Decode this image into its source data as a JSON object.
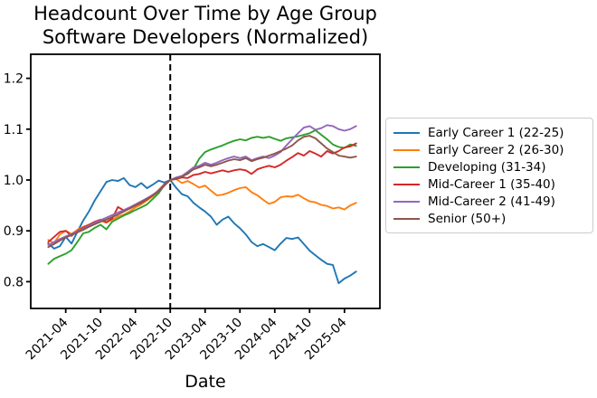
{
  "title_line1": "Headcount Over Time by Age Group",
  "title_line2": "Software Developers (Normalized)",
  "chart_data": {
    "type": "line",
    "title": "Headcount Over Time by Age Group",
    "subtitle": "Software Developers (Normalized)",
    "xlabel": "Date",
    "ylabel": "",
    "grid": false,
    "legend_position": "right",
    "ylim": [
      0.75,
      1.25
    ],
    "y_ticks": [
      "0.8",
      "0.9",
      "1.0",
      "1.1",
      "1.2"
    ],
    "y_tick_values": [
      0.8,
      0.9,
      1.0,
      1.1,
      1.2
    ],
    "x_tick_labels": [
      "2021-04",
      "2021-10",
      "2022-04",
      "2022-10",
      "2023-04",
      "2023-10",
      "2024-04",
      "2024-10",
      "2025-04"
    ],
    "annotation": {
      "type": "vline",
      "x": "2022-10",
      "style": "dashed",
      "color": "#000000"
    },
    "x": [
      "2021-01",
      "2021-02",
      "2021-03",
      "2021-04",
      "2021-05",
      "2021-06",
      "2021-07",
      "2021-08",
      "2021-09",
      "2021-10",
      "2021-11",
      "2021-12",
      "2022-01",
      "2022-02",
      "2022-03",
      "2022-04",
      "2022-05",
      "2022-06",
      "2022-07",
      "2022-08",
      "2022-09",
      "2022-10",
      "2022-11",
      "2022-12",
      "2023-01",
      "2023-02",
      "2023-03",
      "2023-04",
      "2023-05",
      "2023-06",
      "2023-07",
      "2023-08",
      "2023-09",
      "2023-10",
      "2023-11",
      "2023-12",
      "2024-01",
      "2024-02",
      "2024-03",
      "2024-04",
      "2024-05",
      "2024-06",
      "2024-07",
      "2024-08",
      "2024-09",
      "2024-10",
      "2024-11",
      "2024-12",
      "2025-01",
      "2025-02",
      "2025-03",
      "2025-04",
      "2025-05",
      "2025-06"
    ],
    "series": [
      {
        "name": "Early Career 1 (22-25)",
        "color": "#1f77b4",
        "values": [
          0.875,
          0.865,
          0.87,
          0.888,
          0.875,
          0.898,
          0.92,
          0.938,
          0.96,
          0.978,
          0.996,
          1.0,
          0.998,
          1.004,
          0.99,
          0.986,
          0.994,
          0.984,
          0.991,
          0.999,
          0.995,
          1.0,
          0.985,
          0.972,
          0.968,
          0.955,
          0.946,
          0.938,
          0.928,
          0.912,
          0.922,
          0.928,
          0.915,
          0.905,
          0.893,
          0.878,
          0.87,
          0.874,
          0.868,
          0.862,
          0.875,
          0.886,
          0.884,
          0.887,
          0.874,
          0.861,
          0.852,
          0.843,
          0.835,
          0.833,
          0.797,
          0.806,
          0.812,
          0.82
        ]
      },
      {
        "name": "Early Career 2 (26-30)",
        "color": "#ff7f0e",
        "values": [
          0.882,
          0.876,
          0.893,
          0.9,
          0.894,
          0.902,
          0.908,
          0.912,
          0.916,
          0.92,
          0.916,
          0.922,
          0.928,
          0.932,
          0.938,
          0.946,
          0.952,
          0.96,
          0.968,
          0.978,
          0.99,
          1.0,
          1.002,
          0.994,
          0.998,
          0.992,
          0.985,
          0.989,
          0.979,
          0.97,
          0.971,
          0.975,
          0.98,
          0.984,
          0.986,
          0.976,
          0.97,
          0.961,
          0.953,
          0.957,
          0.966,
          0.968,
          0.967,
          0.971,
          0.964,
          0.958,
          0.956,
          0.951,
          0.949,
          0.944,
          0.946,
          0.942,
          0.95,
          0.955
        ]
      },
      {
        "name": "Developing (31-34)",
        "color": "#2ca02c",
        "values": [
          0.835,
          0.845,
          0.85,
          0.855,
          0.862,
          0.878,
          0.895,
          0.898,
          0.906,
          0.912,
          0.903,
          0.918,
          0.924,
          0.93,
          0.935,
          0.941,
          0.946,
          0.952,
          0.963,
          0.974,
          0.99,
          1.0,
          1.004,
          1.008,
          1.012,
          1.022,
          1.042,
          1.055,
          1.06,
          1.064,
          1.068,
          1.073,
          1.077,
          1.08,
          1.078,
          1.083,
          1.085,
          1.083,
          1.085,
          1.081,
          1.077,
          1.082,
          1.084,
          1.086,
          1.089,
          1.092,
          1.098,
          1.089,
          1.08,
          1.07,
          1.065,
          1.063,
          1.07,
          1.067
        ]
      },
      {
        "name": "Mid-Career 1 (35-40)",
        "color": "#d62728",
        "values": [
          0.878,
          0.888,
          0.898,
          0.9,
          0.89,
          0.9,
          0.906,
          0.912,
          0.918,
          0.922,
          0.917,
          0.924,
          0.947,
          0.94,
          0.944,
          0.95,
          0.955,
          0.962,
          0.97,
          0.98,
          0.992,
          1.0,
          1.002,
          1.005,
          1.004,
          1.01,
          1.012,
          1.016,
          1.013,
          1.016,
          1.019,
          1.016,
          1.019,
          1.021,
          1.019,
          1.012,
          1.021,
          1.025,
          1.028,
          1.025,
          1.03,
          1.038,
          1.045,
          1.053,
          1.048,
          1.057,
          1.052,
          1.046,
          1.057,
          1.052,
          1.057,
          1.064,
          1.066,
          1.072
        ]
      },
      {
        "name": "Mid-Career 2 (41-49)",
        "color": "#9467bd",
        "values": [
          0.872,
          0.878,
          0.884,
          0.889,
          0.894,
          0.899,
          0.904,
          0.91,
          0.916,
          0.921,
          0.926,
          0.931,
          0.936,
          0.941,
          0.946,
          0.952,
          0.958,
          0.964,
          0.971,
          0.979,
          0.99,
          1.0,
          1.005,
          1.008,
          1.016,
          1.025,
          1.028,
          1.034,
          1.03,
          1.034,
          1.039,
          1.043,
          1.046,
          1.043,
          1.046,
          1.039,
          1.043,
          1.046,
          1.043,
          1.048,
          1.055,
          1.068,
          1.08,
          1.092,
          1.103,
          1.106,
          1.099,
          1.102,
          1.108,
          1.106,
          1.1,
          1.097,
          1.1,
          1.106
        ]
      },
      {
        "name": "Senior (50+)",
        "color": "#8c564b",
        "values": [
          0.868,
          0.874,
          0.881,
          0.887,
          0.892,
          0.897,
          0.902,
          0.908,
          0.913,
          0.918,
          0.922,
          0.927,
          0.932,
          0.938,
          0.944,
          0.95,
          0.956,
          0.963,
          0.97,
          0.978,
          0.989,
          1.0,
          1.003,
          1.006,
          1.013,
          1.021,
          1.025,
          1.03,
          1.027,
          1.03,
          1.034,
          1.038,
          1.041,
          1.039,
          1.043,
          1.037,
          1.041,
          1.044,
          1.048,
          1.052,
          1.057,
          1.062,
          1.068,
          1.078,
          1.085,
          1.087,
          1.082,
          1.072,
          1.062,
          1.055,
          1.048,
          1.046,
          1.044,
          1.046
        ]
      }
    ]
  }
}
